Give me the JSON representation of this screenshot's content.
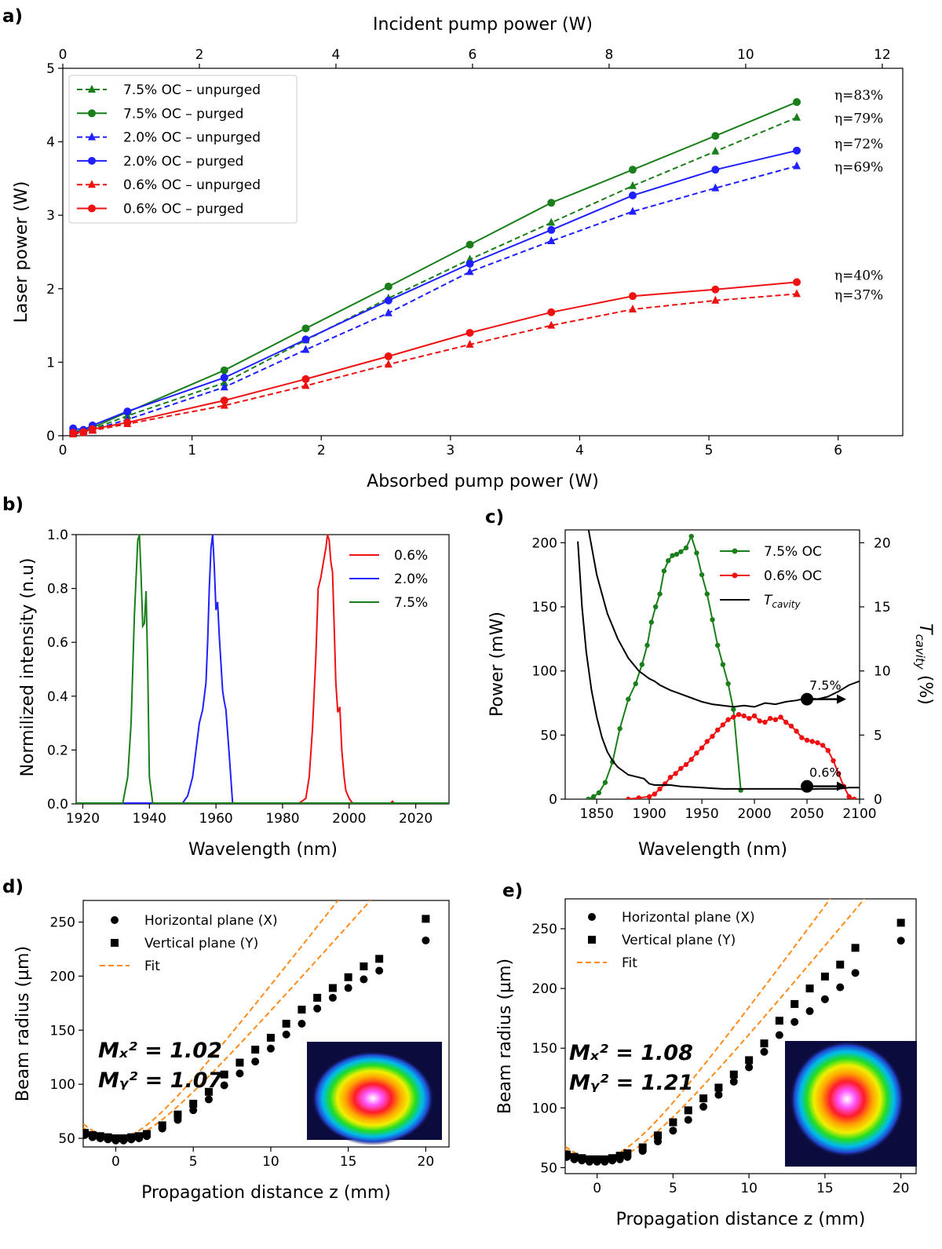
{
  "chart_data": [
    {
      "panel": "a)",
      "type": "line",
      "xlabel": "Absorbed pump power (W)",
      "x2label": "Incident pump power (W)",
      "ylabel": "Laser power (W)",
      "xlim": [
        0,
        6.5
      ],
      "x2lim": [
        0,
        12.3
      ],
      "ylim": [
        0,
        5
      ],
      "xticks": [
        0,
        1,
        2,
        3,
        4,
        5,
        6
      ],
      "x2ticks": [
        0,
        2,
        4,
        6,
        8,
        10,
        12
      ],
      "yticks": [
        0,
        1,
        2,
        3,
        4,
        5
      ],
      "legend": "top-left",
      "x": [
        0.08,
        0.16,
        0.23,
        0.5,
        1.25,
        1.88,
        2.52,
        3.15,
        3.78,
        4.41,
        5.05,
        5.68
      ],
      "series": [
        {
          "name": "7.5% OC – unpurged",
          "color": "#1a7f1a",
          "dash": true,
          "marker": "triangle",
          "values": [
            0.05,
            0.06,
            0.09,
            0.27,
            0.72,
            1.3,
            1.87,
            2.4,
            2.9,
            3.4,
            3.87,
            4.33
          ],
          "eta": "η=79%"
        },
        {
          "name": "7.5% OC – purged",
          "color": "#1a7f1a",
          "dash": false,
          "marker": "circle",
          "values": [
            0.06,
            0.07,
            0.11,
            0.32,
            0.89,
            1.46,
            2.03,
            2.6,
            3.17,
            3.62,
            4.08,
            4.54
          ],
          "eta": "η=83%"
        },
        {
          "name": "2.0% OC – unpurged",
          "color": "#1f1fff",
          "dash": true,
          "marker": "triangle",
          "values": [
            0.05,
            0.06,
            0.08,
            0.22,
            0.66,
            1.17,
            1.67,
            2.23,
            2.65,
            3.05,
            3.37,
            3.67
          ],
          "eta": "η=69%"
        },
        {
          "name": "2.0% OC – purged",
          "color": "#1f1fff",
          "dash": false,
          "marker": "circle",
          "values": [
            0.1,
            0.08,
            0.14,
            0.33,
            0.79,
            1.31,
            1.84,
            2.34,
            2.8,
            3.27,
            3.62,
            3.88
          ],
          "eta": "η=72%"
        },
        {
          "name": "0.6% OC – unpurged",
          "color": "#ee1111",
          "dash": true,
          "marker": "triangle",
          "values": [
            0.02,
            0.04,
            0.07,
            0.16,
            0.41,
            0.68,
            0.97,
            1.24,
            1.5,
            1.72,
            1.84,
            1.93
          ],
          "eta": "η=37%"
        },
        {
          "name": "0.6% OC – purged",
          "color": "#ee1111",
          "dash": false,
          "marker": "circle",
          "values": [
            0.04,
            0.05,
            0.09,
            0.18,
            0.48,
            0.77,
            1.08,
            1.4,
            1.68,
            1.9,
            1.99,
            2.09
          ],
          "eta": "η=40%"
        }
      ]
    },
    {
      "panel": "b)",
      "type": "line",
      "xlabel": "Wavelength (nm)",
      "ylabel": "Normilized intensity (n.u)",
      "xlim": [
        1918,
        2030
      ],
      "ylim": [
        0,
        1.0
      ],
      "xticks": [
        1920,
        1940,
        1960,
        1980,
        2000,
        2020
      ],
      "yticks": [
        0.0,
        0.2,
        0.4,
        0.6,
        0.8,
        1.0
      ],
      "legend": "top-right",
      "series": [
        {
          "name": "0.6%",
          "color": "#ee1111",
          "x": [
            1918,
            1985,
            1987,
            1988,
            1989,
            1990,
            1990.7,
            1991.5,
            1992.3,
            1993,
            1993.5,
            1994,
            1994.5,
            1995,
            1995.5,
            1996,
            1996.6,
            1997.2,
            1997.8,
            1998.5,
            1999,
            2000,
            2001,
            2012.5,
            2013,
            2013.5,
            2030
          ],
          "y": [
            0.003,
            0.003,
            0.02,
            0.1,
            0.28,
            0.55,
            0.8,
            0.84,
            0.9,
            0.95,
            1.0,
            0.98,
            0.9,
            0.86,
            0.66,
            0.45,
            0.34,
            0.36,
            0.2,
            0.1,
            0.05,
            0.02,
            0.003,
            0.003,
            0.01,
            0.003,
            0.003
          ]
        },
        {
          "name": "2.0%",
          "color": "#1f1fff",
          "x": [
            1918,
            1950,
            1951.5,
            1953,
            1954,
            1955,
            1956,
            1957,
            1957.5,
            1958,
            1958.5,
            1959,
            1959.5,
            1960,
            1960.5,
            1961,
            1961.5,
            1962,
            1962.5,
            1963,
            1964,
            1965,
            2030
          ],
          "y": [
            0.003,
            0.003,
            0.03,
            0.1,
            0.2,
            0.3,
            0.35,
            0.45,
            0.6,
            0.8,
            0.95,
            1.0,
            0.88,
            0.72,
            0.75,
            0.62,
            0.52,
            0.42,
            0.38,
            0.35,
            0.18,
            0.003,
            0.003
          ]
        },
        {
          "name": "7.5%",
          "color": "#1a7f1a",
          "x": [
            1918,
            1932,
            1933.5,
            1934.5,
            1935.5,
            1936.5,
            1937,
            1937.5,
            1938,
            1938.5,
            1939,
            1939.5,
            1940,
            1941,
            2030
          ],
          "y": [
            0.003,
            0.003,
            0.1,
            0.3,
            0.7,
            0.98,
            1.0,
            0.85,
            0.66,
            0.67,
            0.79,
            0.5,
            0.1,
            0.003,
            0.003
          ]
        }
      ]
    },
    {
      "panel": "c)",
      "type": "line",
      "xlabel": "Wavelength (nm)",
      "ylabel": "Power (mW)",
      "y2label": "T_cavity (%)",
      "y2label_main": "T",
      "y2label_sub": "cavity",
      "y2label_unit": "(%)",
      "xlim": [
        1820,
        2100
      ],
      "ylim": [
        0,
        210
      ],
      "y2lim": [
        0,
        21
      ],
      "xticks": [
        1850,
        1900,
        1950,
        2000,
        2050,
        2100
      ],
      "yticks": [
        0,
        50,
        100,
        150,
        200
      ],
      "y2ticks": [
        0,
        5,
        10,
        15,
        20
      ],
      "legend": "top-right",
      "legend_entries": [
        {
          "name": "7.5% OC",
          "color": "#1a7f1a",
          "marker": "circle"
        },
        {
          "name": "0.6% OC",
          "color": "#ee1111",
          "marker": "circle"
        },
        {
          "name": "T",
          "sub": "cavity",
          "color": "#000000",
          "marker": "none"
        }
      ],
      "series": [
        {
          "name": "7.5% OC",
          "color": "#1a7f1a",
          "axis": "left",
          "x": [
            1842,
            1847,
            1852,
            1858,
            1865,
            1872,
            1880,
            1887,
            1893,
            1898,
            1902,
            1906,
            1910,
            1914,
            1918,
            1922,
            1926,
            1930,
            1935,
            1940,
            1945,
            1950,
            1955,
            1960,
            1965,
            1970,
            1975,
            1980,
            1987
          ],
          "y": [
            0,
            2,
            5,
            13,
            29,
            55,
            78,
            90,
            105,
            120,
            138,
            150,
            160,
            178,
            186,
            190,
            191,
            193,
            196,
            205,
            192,
            175,
            160,
            140,
            120,
            105,
            90,
            70,
            7
          ]
        },
        {
          "name": "0.6% OC",
          "color": "#ee1111",
          "axis": "left",
          "x": [
            1880,
            1890,
            1900,
            1905,
            1910,
            1915,
            1920,
            1925,
            1930,
            1935,
            1940,
            1945,
            1950,
            1955,
            1960,
            1965,
            1970,
            1975,
            1980,
            1985,
            1990,
            1995,
            2000,
            2005,
            2010,
            2015,
            2020,
            2025,
            2030,
            2035,
            2040,
            2045,
            2050,
            2055,
            2060,
            2065,
            2070,
            2075,
            2080,
            2085,
            2090,
            2095
          ],
          "y": [
            0,
            1,
            2,
            4,
            8,
            12,
            17,
            20,
            24,
            27,
            31,
            36,
            40,
            45,
            49,
            54,
            58,
            62,
            64,
            66,
            65,
            63,
            65,
            61,
            60,
            63,
            62,
            64,
            60,
            57,
            53,
            48,
            46,
            45,
            44,
            42,
            38,
            30,
            20,
            10,
            2,
            0
          ]
        },
        {
          "name": "T_cavity 7.5%",
          "color": "#000000",
          "axis": "right",
          "x": [
            1832,
            1840,
            1850,
            1860,
            1870,
            1880,
            1890,
            1900,
            1905,
            1910,
            1920,
            1930,
            1940,
            1950,
            1960,
            1970,
            1980,
            1990,
            2000,
            2010,
            2020,
            2030,
            2040,
            2050,
            2060,
            2070,
            2080,
            2090,
            2100
          ],
          "y": [
            30,
            22,
            17.5,
            14.5,
            12.5,
            11,
            10,
            9.4,
            9.2,
            8.9,
            8.5,
            8.2,
            7.9,
            7.6,
            7.4,
            7.3,
            7.2,
            7.3,
            7.2,
            7.5,
            7.4,
            7.6,
            7.7,
            7.9,
            7.8,
            8.0,
            8.4,
            8.9,
            9.2
          ]
        },
        {
          "name": "T_cavity 0.6%",
          "color": "#000000",
          "axis": "right",
          "x": [
            1832,
            1836,
            1840,
            1845,
            1850,
            1855,
            1860,
            1865,
            1870,
            1880,
            1890,
            1895,
            1900,
            1905,
            1910,
            1920,
            1930,
            1940,
            1950,
            1960,
            1970,
            1980,
            1990,
            2000,
            2010,
            2020,
            2030,
            2040,
            2050,
            2060,
            2070,
            2080,
            2090,
            2100
          ],
          "y": [
            20.1,
            15,
            11.5,
            8.5,
            6.4,
            4.8,
            3.7,
            3.0,
            2.5,
            1.9,
            1.7,
            1.6,
            1.2,
            1.1,
            1.1,
            1.1,
            1.0,
            0.95,
            0.9,
            0.85,
            0.8,
            0.8,
            0.8,
            0.8,
            0.8,
            0.8,
            0.8,
            0.8,
            0.75,
            0.8,
            0.8,
            0.8,
            0.9,
            0.9
          ]
        }
      ],
      "annotations": [
        {
          "text": "7.5%",
          "x": 2050,
          "y2": 7.8
        },
        {
          "text": "0.6%",
          "x": 2050,
          "y2": 1.0
        }
      ]
    },
    {
      "panel": "d)",
      "type": "scatter",
      "xlabel": "Propagation distance z (mm)",
      "ylabel": "Beam radius (µm)",
      "xlim": [
        -2.1,
        21.5
      ],
      "ylim": [
        42,
        270
      ],
      "xticks": [
        0,
        5,
        10,
        15,
        20
      ],
      "yticks": [
        50,
        100,
        150,
        200,
        250
      ],
      "legend": "top-left",
      "legend_entries": [
        {
          "name": "Horizontal plane (X)",
          "marker": "circle"
        },
        {
          "name": "Vertical plane (Y)",
          "marker": "square"
        },
        {
          "name": "Fit",
          "marker": "dashed-line",
          "color": "#ff8c1a"
        }
      ],
      "m2_x": "Mₓ² = 1.02",
      "m2_y": "Mᵧ² = 1.07",
      "x": [
        -2,
        -1.5,
        -1,
        -0.5,
        0,
        0.5,
        1,
        1.5,
        2,
        3,
        4,
        5,
        6,
        7,
        8,
        9,
        10,
        11,
        12,
        13,
        14,
        15,
        16,
        17,
        20
      ],
      "series": [
        {
          "name": "Horizontal plane (X)",
          "marker": "circle",
          "values": [
            53,
            51,
            50,
            49,
            48,
            48,
            49,
            50,
            52,
            59,
            67,
            76,
            86,
            99,
            110,
            121,
            133,
            146,
            156,
            170,
            180,
            189,
            197,
            205,
            233
          ]
        },
        {
          "name": "Vertical plane (Y)",
          "marker": "square",
          "values": [
            55,
            53,
            52,
            51,
            50,
            50,
            51,
            52,
            54,
            62,
            72,
            82,
            93,
            109,
            120,
            132,
            143,
            156,
            169,
            180,
            189,
            199,
            209,
            216,
            253
          ]
        }
      ],
      "fits": [
        {
          "w0": 48,
          "z0": 0.1,
          "zr": 2.95
        },
        {
          "w0": 50,
          "z0": 0.0,
          "zr": 2.7
        }
      ]
    },
    {
      "panel": "e)",
      "type": "scatter",
      "xlabel": "Propagation distance z (mm)",
      "ylabel": "Beam radius (µm)",
      "xlim": [
        -2.1,
        21.0
      ],
      "ylim": [
        45,
        275
      ],
      "xticks": [
        0,
        5,
        10,
        15,
        20
      ],
      "yticks": [
        50,
        100,
        150,
        200,
        250
      ],
      "legend": "top-left",
      "legend_entries": [
        {
          "name": "Horizontal plane (X)",
          "marker": "circle"
        },
        {
          "name": "Vertical plane (Y)",
          "marker": "square"
        },
        {
          "name": "Fit",
          "marker": "dashed-line",
          "color": "#ff8c1a"
        }
      ],
      "m2_x": "Mₓ² = 1.08",
      "m2_y": "Mᵧ² = 1.21",
      "x": [
        -2,
        -1.5,
        -1,
        -0.5,
        0,
        0.5,
        1,
        1.5,
        2,
        3,
        4,
        5,
        6,
        7,
        8,
        9,
        10,
        11,
        12,
        13,
        14,
        15,
        16,
        17,
        20
      ],
      "series": [
        {
          "name": "Horizontal plane (X)",
          "marker": "circle",
          "values": [
            59,
            57,
            56,
            55,
            55,
            55,
            56,
            57,
            59,
            64,
            72,
            81,
            90,
            101,
            111,
            122,
            134,
            147,
            161,
            172,
            181,
            191,
            201,
            213,
            240
          ]
        },
        {
          "name": "Vertical plane (Y)",
          "marker": "square",
          "values": [
            61,
            59,
            58,
            57,
            57,
            57,
            58,
            60,
            62,
            67,
            77,
            88,
            98,
            108,
            117,
            128,
            140,
            154,
            173,
            187,
            200,
            210,
            220,
            234,
            255
          ]
        }
      ],
      "fits": [
        {
          "w0": 55,
          "z0": 0.2,
          "zr": 3.55
        },
        {
          "w0": 57,
          "z0": 0.0,
          "zr": 3.25
        }
      ]
    }
  ]
}
